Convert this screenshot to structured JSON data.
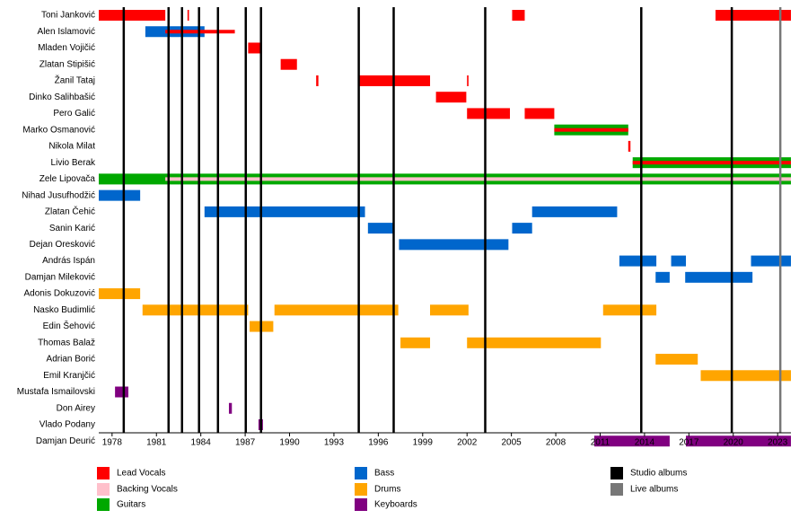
{
  "chart_data": {
    "type": "timeline",
    "xlim": [
      1977.1,
      2023.9
    ],
    "xticks": [
      1978,
      1981,
      1984,
      1987,
      1990,
      1993,
      1996,
      1999,
      2002,
      2005,
      2008,
      2011,
      2014,
      2017,
      2020,
      2023
    ],
    "roles": [
      {
        "name": "Lead Vocals",
        "color": "#ff0000"
      },
      {
        "name": "Backing Vocals",
        "color": "#ffc0cb"
      },
      {
        "name": "Guitars",
        "color": "#00a800"
      },
      {
        "name": "Bass",
        "color": "#0066cc"
      },
      {
        "name": "Drums",
        "color": "#ffa500"
      },
      {
        "name": "Keyboards",
        "color": "#800080"
      }
    ],
    "album_types": [
      {
        "name": "Studio albums",
        "color": "#000000",
        "years": [
          1978.79,
          1981.82,
          1982.73,
          1983.88,
          1985.16,
          1987.04,
          1988.07,
          1994.68,
          1997.04,
          2003.23,
          2013.78,
          2019.9
        ]
      },
      {
        "name": "Live albums",
        "color": "#777777",
        "years": [
          2023.18
        ]
      }
    ],
    "members": [
      {
        "name": "Toni Janković",
        "stints": [
          {
            "role": "Lead Vocals",
            "start": 1977.1,
            "end": 1981.6
          },
          {
            "role": "Lead Vocals",
            "start": 1983.1,
            "end": 1983.2
          },
          {
            "role": "Lead Vocals",
            "start": 2005.05,
            "end": 2005.9
          },
          {
            "role": "Lead Vocals",
            "start": 2018.8,
            "end": 2023.9
          }
        ]
      },
      {
        "name": "Alen Islamović",
        "stints": [
          {
            "role": "Bass",
            "start": 1980.25,
            "end": 1984.25
          },
          {
            "role": "Lead Vocals",
            "start": 1981.6,
            "end": 1986.3
          }
        ]
      },
      {
        "name": "Mladen Vojičić",
        "stints": [
          {
            "role": "Lead Vocals",
            "start": 1987.2,
            "end": 1988.07
          }
        ]
      },
      {
        "name": "Zlatan Stipišić",
        "stints": [
          {
            "role": "Lead Vocals",
            "start": 1989.4,
            "end": 1990.5
          }
        ]
      },
      {
        "name": "Žanil Tataj",
        "stints": [
          {
            "role": "Lead Vocals",
            "start": 1991.8,
            "end": 1991.95
          },
          {
            "role": "Lead Vocals",
            "start": 1994.7,
            "end": 1999.5
          },
          {
            "role": "Lead Vocals",
            "start": 2002.0,
            "end": 2002.1
          }
        ]
      },
      {
        "name": "Dinko Salihbašić",
        "stints": [
          {
            "role": "Lead Vocals",
            "start": 1999.9,
            "end": 2001.95
          }
        ]
      },
      {
        "name": "Pero Galić",
        "stints": [
          {
            "role": "Lead Vocals",
            "start": 2002.0,
            "end": 2004.9
          },
          {
            "role": "Lead Vocals",
            "start": 2005.9,
            "end": 2007.9
          }
        ]
      },
      {
        "name": "Marko Osmanović",
        "stints": [
          {
            "role": "Guitars",
            "start": 2007.9,
            "end": 2012.9
          },
          {
            "role": "Lead Vocals",
            "start": 2007.9,
            "end": 2012.9
          }
        ]
      },
      {
        "name": "Nikola Milat",
        "stints": [
          {
            "role": "Lead Vocals",
            "start": 2012.9,
            "end": 2013.05
          }
        ]
      },
      {
        "name": "Livio Berak",
        "stints": [
          {
            "role": "Guitars",
            "start": 2013.2,
            "end": 2023.9
          },
          {
            "role": "Lead Vocals",
            "start": 2013.2,
            "end": 2023.9
          }
        ]
      },
      {
        "name": "Zele Lipovača",
        "stints": [
          {
            "role": "Guitars",
            "start": 1977.1,
            "end": 2023.9
          },
          {
            "role": "Backing Vocals",
            "start": 1981.6,
            "end": 2023.9
          }
        ]
      },
      {
        "name": "Nihad Jusufhodžić",
        "stints": [
          {
            "role": "Bass",
            "start": 1977.1,
            "end": 1979.9
          }
        ]
      },
      {
        "name": "Zlatan Čehić",
        "stints": [
          {
            "role": "Bass",
            "start": 1984.25,
            "end": 1995.1
          },
          {
            "role": "Bass",
            "start": 2006.4,
            "end": 2012.15
          }
        ]
      },
      {
        "name": "Sanin Karić",
        "stints": [
          {
            "role": "Bass",
            "start": 1995.3,
            "end": 1997.04
          },
          {
            "role": "Bass",
            "start": 2005.05,
            "end": 2006.4
          }
        ]
      },
      {
        "name": "Dejan Oresković",
        "stints": [
          {
            "role": "Bass",
            "start": 1997.4,
            "end": 2004.8
          }
        ]
      },
      {
        "name": "András Ispán",
        "stints": [
          {
            "role": "Bass",
            "start": 2012.3,
            "end": 2014.8
          },
          {
            "role": "Bass",
            "start": 2015.8,
            "end": 2016.8
          },
          {
            "role": "Bass",
            "start": 2021.2,
            "end": 2023.9
          }
        ]
      },
      {
        "name": "Damjan Mileković",
        "stints": [
          {
            "role": "Bass",
            "start": 2014.75,
            "end": 2015.7
          },
          {
            "role": "Bass",
            "start": 2016.75,
            "end": 2021.3
          }
        ]
      },
      {
        "name": "Adonis Dokuzović",
        "stints": [
          {
            "role": "Drums",
            "start": 1977.1,
            "end": 1979.9
          }
        ]
      },
      {
        "name": "Nasko Budimlić",
        "stints": [
          {
            "role": "Drums",
            "start": 1980.06,
            "end": 1987.2
          },
          {
            "role": "Drums",
            "start": 1988.98,
            "end": 1997.35
          },
          {
            "role": "Drums",
            "start": 1999.5,
            "end": 2002.1
          },
          {
            "role": "Drums",
            "start": 2011.2,
            "end": 2014.8
          }
        ]
      },
      {
        "name": "Edin Šehović",
        "stints": [
          {
            "role": "Drums",
            "start": 1987.3,
            "end": 1988.9
          }
        ]
      },
      {
        "name": "Thomas Balaž",
        "stints": [
          {
            "role": "Drums",
            "start": 1997.5,
            "end": 1999.5
          },
          {
            "role": "Drums",
            "start": 2002.0,
            "end": 2011.05
          }
        ]
      },
      {
        "name": "Adrian Borić",
        "stints": [
          {
            "role": "Drums",
            "start": 2014.75,
            "end": 2017.6
          }
        ]
      },
      {
        "name": "Emil Kranjčić",
        "stints": [
          {
            "role": "Drums",
            "start": 2017.8,
            "end": 2023.9
          }
        ]
      },
      {
        "name": "Mustafa Ismailovski",
        "stints": [
          {
            "role": "Keyboards",
            "start": 1978.2,
            "end": 1979.1
          }
        ]
      },
      {
        "name": "Don Airey",
        "stints": [
          {
            "role": "Keyboards",
            "start": 1985.9,
            "end": 1986.1
          }
        ]
      },
      {
        "name": "Vlado Podany",
        "stints": [
          {
            "role": "Keyboards",
            "start": 1987.9,
            "end": 1988.2
          }
        ]
      },
      {
        "name": "Damjan Deurić",
        "stints": [
          {
            "role": "Keyboards",
            "start": 2010.6,
            "end": 2015.7
          },
          {
            "role": "Keyboards",
            "start": 2016.8,
            "end": 2023.9
          }
        ]
      }
    ]
  }
}
